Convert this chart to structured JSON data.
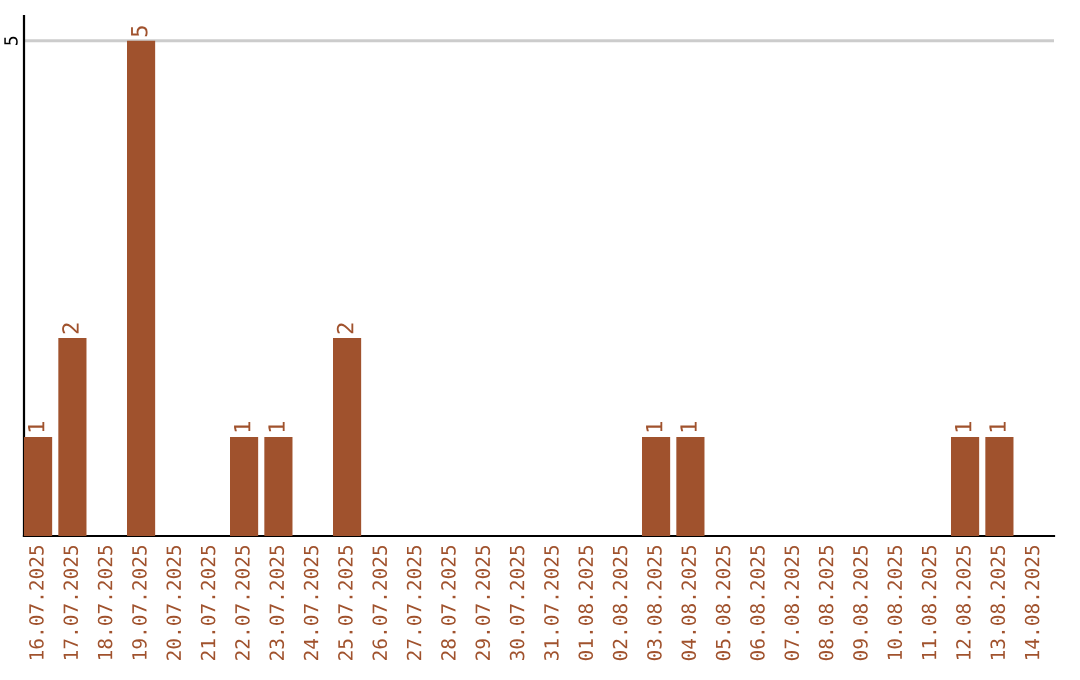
{
  "chart_data": {
    "type": "bar",
    "categories": [
      "16.07.2025",
      "17.07.2025",
      "18.07.2025",
      "19.07.2025",
      "20.07.2025",
      "21.07.2025",
      "22.07.2025",
      "23.07.2025",
      "24.07.2025",
      "25.07.2025",
      "26.07.2025",
      "27.07.2025",
      "28.07.2025",
      "29.07.2025",
      "30.07.2025",
      "31.07.2025",
      "01.08.2025",
      "02.08.2025",
      "03.08.2025",
      "04.08.2025",
      "05.08.2025",
      "06.08.2025",
      "07.08.2025",
      "08.08.2025",
      "09.08.2025",
      "10.08.2025",
      "11.08.2025",
      "12.08.2025",
      "13.08.2025",
      "14.08.2025"
    ],
    "values": [
      1,
      2,
      0,
      5,
      0,
      0,
      1,
      1,
      0,
      2,
      0,
      0,
      0,
      0,
      0,
      0,
      0,
      0,
      1,
      1,
      0,
      0,
      0,
      0,
      0,
      0,
      0,
      1,
      1,
      0
    ],
    "value_labels": [
      "1",
      "2",
      null,
      "5",
      null,
      null,
      "1",
      "1",
      null,
      "2",
      null,
      null,
      null,
      null,
      null,
      null,
      null,
      null,
      "1",
      "1",
      null,
      null,
      null,
      null,
      null,
      null,
      null,
      "1",
      "1",
      null
    ],
    "color": "#a0522d",
    "ylim": [
      0,
      5.25
    ],
    "yticks": [
      5
    ],
    "grid": "y",
    "legend": false
  }
}
